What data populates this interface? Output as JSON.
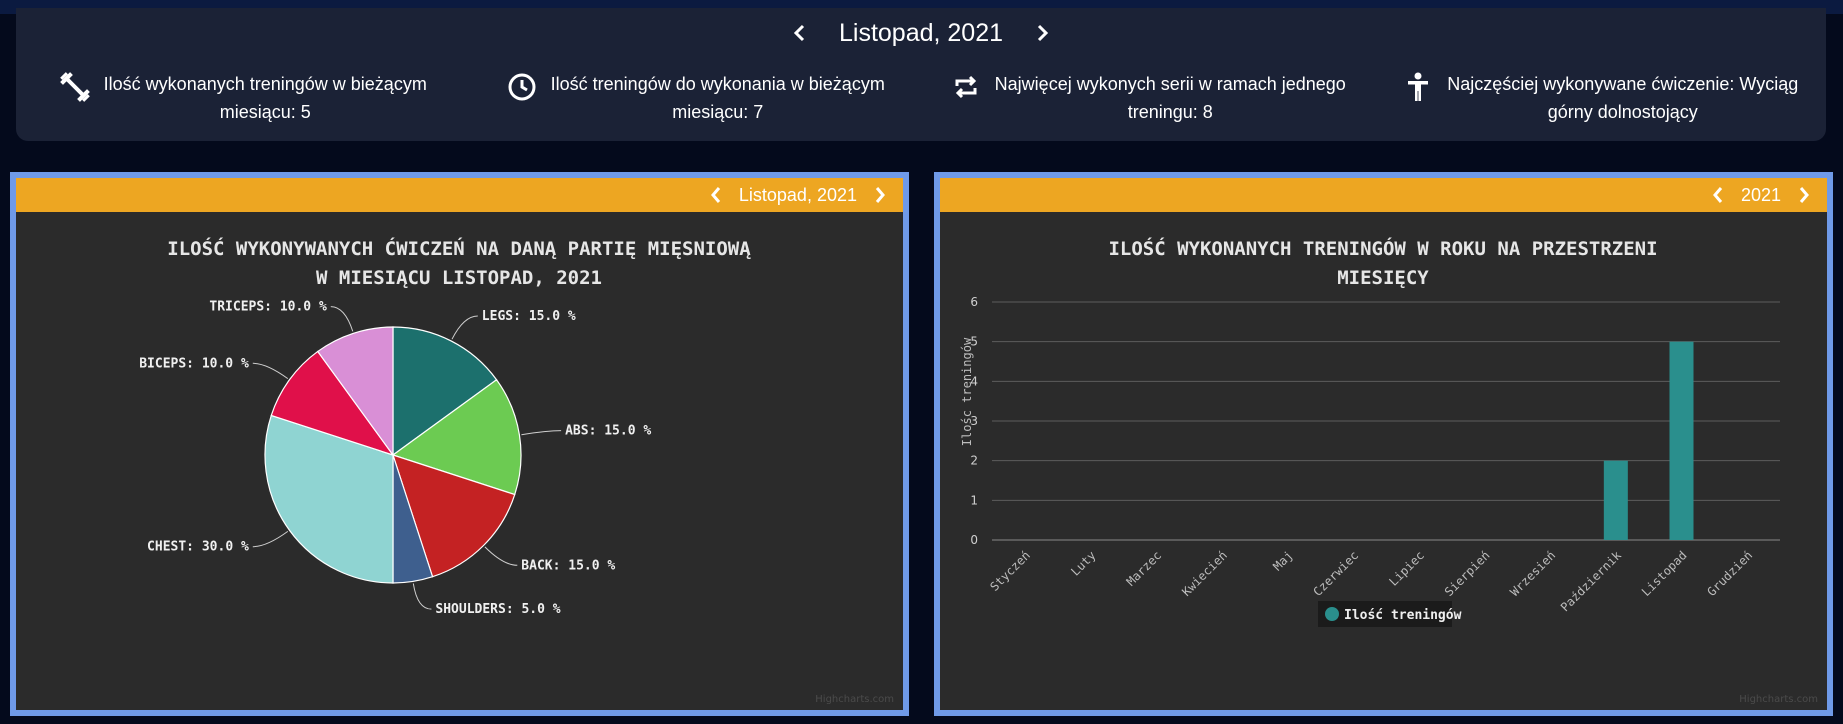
{
  "header": {
    "month_title": "Listopad, 2021",
    "prev_icon": "chevron-left-icon",
    "next_icon": "chevron-right-icon"
  },
  "stats": [
    {
      "icon": "dumbbell-icon",
      "line1": "Ilość wykonanych treningów w bieżącym",
      "line2": "miesiącu: 5"
    },
    {
      "icon": "clock-icon",
      "line1": "Ilość treningów do wykonania w bieżącym",
      "line2": "miesiącu: 7"
    },
    {
      "icon": "repeat-icon",
      "line1": "Najwięcej wykonych serii w ramach jednego",
      "line2": "treningu: 8"
    },
    {
      "icon": "person-icon",
      "line1": "Najczęściej wykonywane ćwiczenie: Wyciąg",
      "line2": "górny dolnostojący"
    }
  ],
  "pie_panel": {
    "nav_label": "Listopad, 2021",
    "credit": "Highcharts.com"
  },
  "bar_panel": {
    "nav_label": "2021",
    "credit": "Highcharts.com"
  },
  "colors": {
    "accent_bar": "#eda622",
    "panel_border": "#6f9ae8",
    "bar_series": "#2a8f8d"
  },
  "chart_data": [
    {
      "type": "pie",
      "title_lines": [
        "ILOŚĆ WYKONYWANYCH ĆWICZEŃ NA DANĄ PARTIĘ MIĘSNIOWĄ",
        "W MIESIĄCU LISTOPAD, 2021"
      ],
      "slices": [
        {
          "name": "LEGS",
          "value": 15.0,
          "label": "LEGS: 15.0 %",
          "color": "#1c706d"
        },
        {
          "name": "ABS",
          "value": 15.0,
          "label": "ABS: 15.0 %",
          "color": "#6ccb52"
        },
        {
          "name": "BACK",
          "value": 15.0,
          "label": "BACK: 15.0 %",
          "color": "#c42223"
        },
        {
          "name": "SHOULDERS",
          "value": 5.0,
          "label": "SHOULDERS: 5.0 %",
          "color": "#3e5f8e"
        },
        {
          "name": "CHEST",
          "value": 30.0,
          "label": "CHEST: 30.0 %",
          "color": "#8fd4d2"
        },
        {
          "name": "BICEPS",
          "value": 10.0,
          "label": "BICEPS: 10.0 %",
          "color": "#e0104a"
        },
        {
          "name": "TRICEPS",
          "value": 10.0,
          "label": "TRICEPS: 10.0 %",
          "color": "#d98fd6"
        }
      ]
    },
    {
      "type": "bar",
      "title_lines": [
        "ILOŚĆ WYKONANYCH TRENINGÓW W ROKU NA PRZESTRZENI",
        "MIESIĘCY"
      ],
      "ylabel": "Ilośc treningów",
      "ylim": [
        0,
        6
      ],
      "yticks": [
        "0",
        "1",
        "2",
        "3",
        "4",
        "5",
        "6"
      ],
      "grid": true,
      "legend_position": "bottom-center",
      "categories": [
        "Styczeń",
        "Luty",
        "Marzec",
        "Kwiecień",
        "Maj",
        "Czerwiec",
        "Lipiec",
        "Sierpień",
        "Wrzesień",
        "Październik",
        "Listopad",
        "Grudzień"
      ],
      "series": [
        {
          "name": "Ilość treningów",
          "values": [
            0,
            0,
            0,
            0,
            0,
            0,
            0,
            0,
            0,
            2,
            5,
            0
          ]
        }
      ]
    }
  ]
}
